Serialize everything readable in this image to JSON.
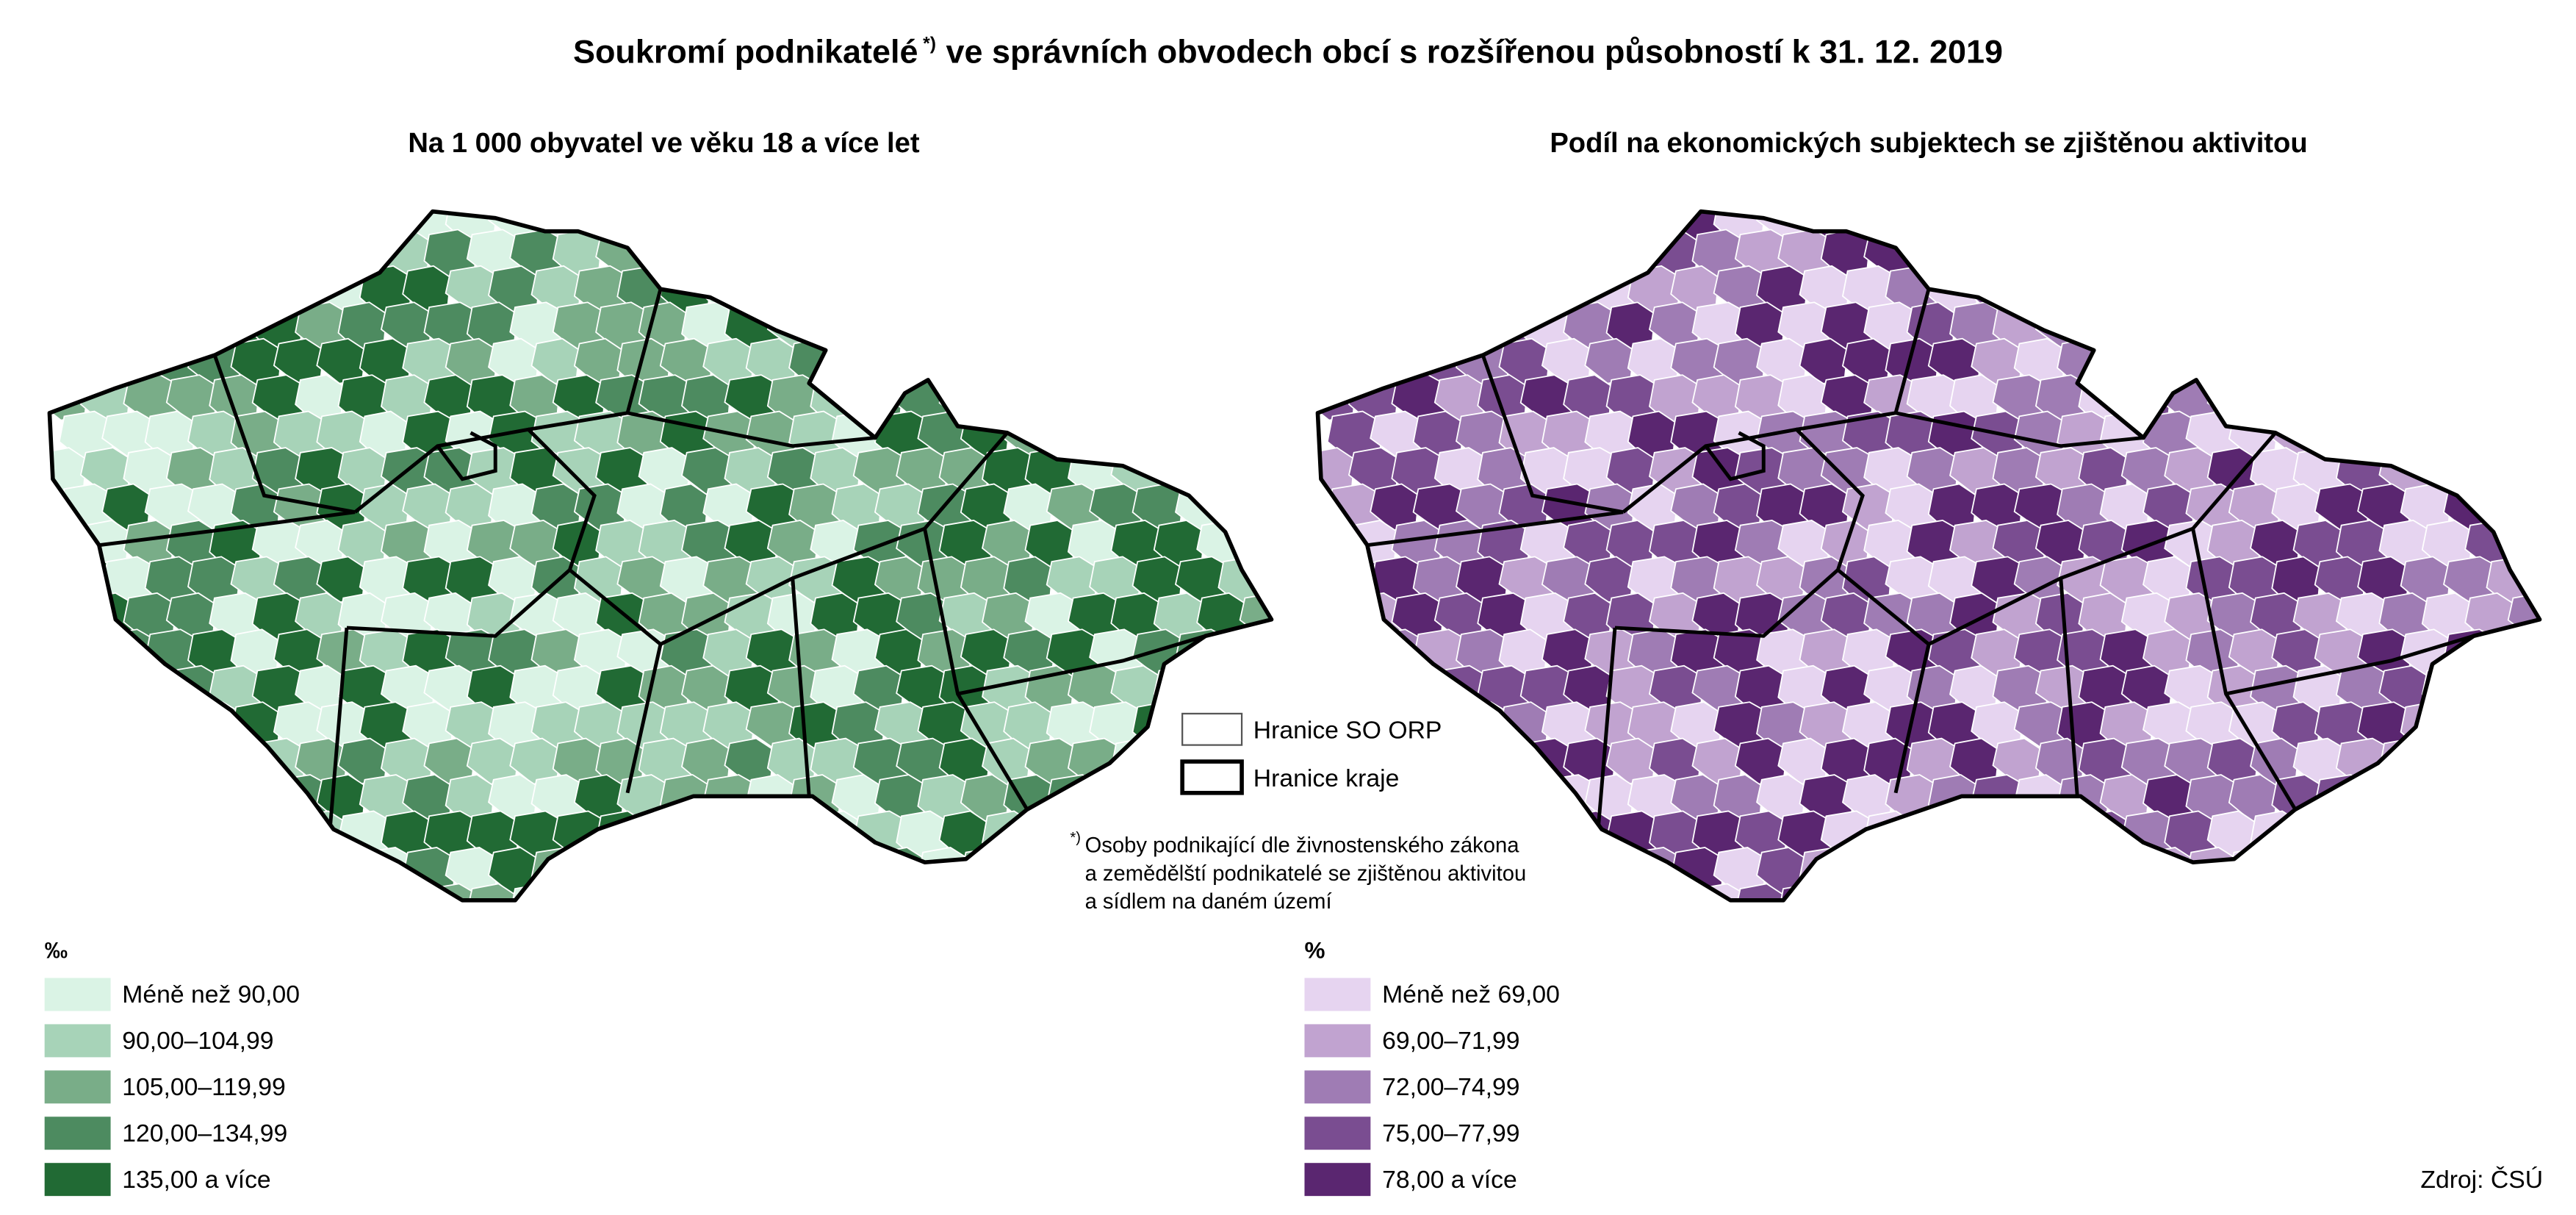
{
  "title": "Soukromí podnikatelé",
  "title_marker": "*)",
  "title_rest": "ve správních obvodech obcí s rozšířenou působností k 31. 12. 2019",
  "maps": [
    {
      "subtitle": "Na 1 000 obyvatel ve věku 18 a více let",
      "unit": "‰",
      "legend": [
        {
          "label": "Méně než 90,00",
          "color": "#daf3e5"
        },
        {
          "label": "90,00–104,99",
          "color": "#a7d3b8"
        },
        {
          "label": "105,00–119,99",
          "color": "#79ad88"
        },
        {
          "label": "120,00–134,99",
          "color": "#4d8b60"
        },
        {
          "label": "135,00 a více",
          "color": "#216a34"
        }
      ]
    },
    {
      "subtitle": "Podíl na ekonomických subjektech se zjištěnou aktivitou",
      "unit": "%",
      "legend": [
        {
          "label": "Méně než 69,00",
          "color": "#e6d4f0"
        },
        {
          "label": "69,00–71,99",
          "color": "#c1a3d0"
        },
        {
          "label": "72,00–74,99",
          "color": "#9f7cb4"
        },
        {
          "label": "75,00–77,99",
          "color": "#7a4d91"
        },
        {
          "label": "78,00 a více",
          "color": "#5a2670"
        }
      ]
    }
  ],
  "borders": [
    "Hranice SO ORP",
    "Hranice kraje"
  ],
  "footnote_marker": "*)",
  "footnote": [
    "Osoby podnikající dle živnostenského zákona",
    "a zemědělští podnikatelé se zjištěnou aktivitou",
    "a sídlem na daném území"
  ],
  "source": "Zdroj: ČSÚ"
}
